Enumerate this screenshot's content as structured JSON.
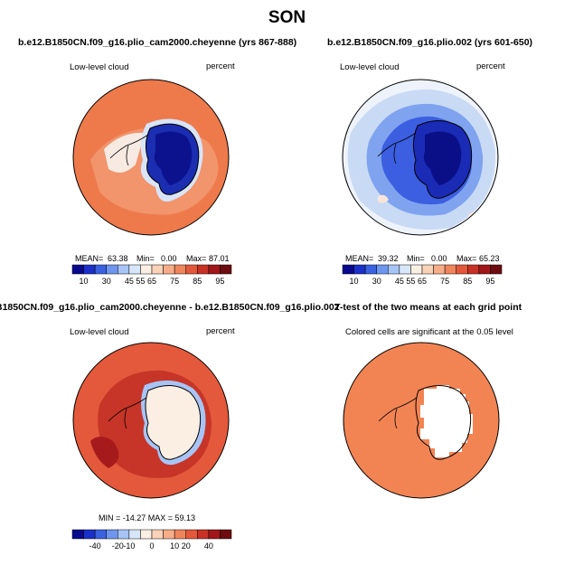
{
  "figure": {
    "title": "SON"
  },
  "panels": [
    {
      "title": "b.e12.B1850CN.f09_g16.plio_cam2000.cheyenne (yrs 867-888)",
      "variable": "Low-level cloud",
      "units": "percent",
      "stats": {
        "mean_label": "MEAN=",
        "mean": "63.38",
        "min_label": "Min=",
        "min": "0.00",
        "max_label": "Max=",
        "max": "87.01"
      },
      "colorbar_ticks": [
        "10",
        "30",
        "45",
        "55",
        "65",
        "75",
        "85",
        "95"
      ]
    },
    {
      "title": "b.e12.B1850CN.f09_g16.plio.002 (yrs 601-650)",
      "variable": "Low-level cloud",
      "units": "percent",
      "stats": {
        "mean_label": "MEAN=",
        "mean": "39.32",
        "min_label": "Min=",
        "min": "0.00",
        "max_label": "Max=",
        "max": "65.23"
      },
      "colorbar_ticks": [
        "10",
        "30",
        "45",
        "55",
        "65",
        "75",
        "85",
        "95"
      ]
    },
    {
      "title": "B1850CN.f09_g16.plio_cam2000.cheyenne - b.e12.B1850CN.f09_g16.plio.002",
      "variable": "Low-level cloud",
      "units": "percent",
      "stats_text": "MIN = -14.27  MAX =  59.13",
      "colorbar_ticks": [
        "-40",
        "-20",
        "-10",
        "0",
        "10",
        "20",
        "40"
      ]
    },
    {
      "title": "T-test of the two means at each grid point",
      "note": "Colored cells are significant at the 0.05 level"
    }
  ],
  "colors": {
    "seq_palette": [
      "#08088f",
      "#1a30c8",
      "#3a62e0",
      "#6e96ee",
      "#a6c4f5",
      "#d8e6fa",
      "#fbefe4",
      "#f9d2b8",
      "#f6ad88",
      "#f0855c",
      "#e3583a",
      "#c83226",
      "#a1161a",
      "#6e0b10"
    ],
    "div_palette": [
      "#08088f",
      "#1a30c8",
      "#3a62e0",
      "#6e96ee",
      "#a6c4f5",
      "#d8e6fa",
      "#fbefe4",
      "#f9d2b8",
      "#f6ad88",
      "#f0855c",
      "#e3583a",
      "#c83226",
      "#a1161a",
      "#6e0b10"
    ],
    "ttest_fill": "#f28454"
  }
}
